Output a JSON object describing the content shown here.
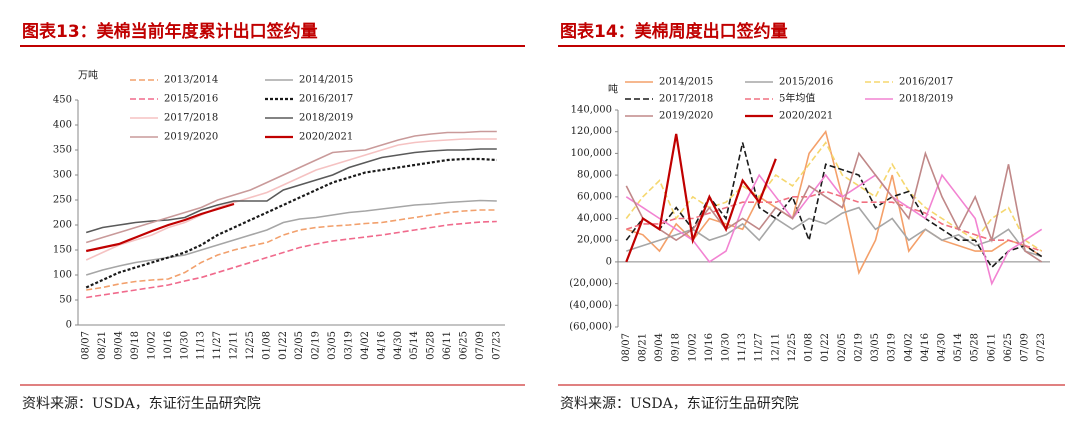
{
  "chart_data": [
    {
      "type": "line",
      "title": "图表13：美棉当前年度累计出口签约量",
      "unit_label": "万吨",
      "source": "资料来源：USDA，东证衍生品研究院",
      "categories": [
        "08/07",
        "08/21",
        "09/04",
        "09/18",
        "10/02",
        "10/16",
        "10/30",
        "11/13",
        "11/27",
        "12/11",
        "12/25",
        "01/08",
        "01/22",
        "02/05",
        "02/19",
        "03/05",
        "03/19",
        "04/02",
        "04/16",
        "04/30",
        "05/14",
        "05/28",
        "06/11",
        "06/25",
        "07/09",
        "07/23"
      ],
      "ylim": [
        0,
        450
      ],
      "yticks": [
        0,
        50,
        100,
        150,
        200,
        250,
        300,
        350,
        400,
        450
      ],
      "series": [
        {
          "name": "2013/2014",
          "color": "#f2a06c",
          "dash": "dashed",
          "values": [
            70,
            75,
            82,
            87,
            90,
            92,
            105,
            125,
            140,
            150,
            158,
            165,
            180,
            190,
            195,
            198,
            200,
            203,
            205,
            210,
            215,
            220,
            225,
            228,
            230,
            230
          ]
        },
        {
          "name": "2014/2015",
          "color": "#a6a6a6",
          "dash": "solid",
          "values": [
            100,
            110,
            118,
            125,
            130,
            135,
            140,
            150,
            160,
            170,
            180,
            190,
            205,
            212,
            215,
            220,
            225,
            228,
            232,
            236,
            240,
            242,
            245,
            247,
            249,
            248
          ]
        },
        {
          "name": "2015/2016",
          "color": "#f06a8c",
          "dash": "dashed",
          "values": [
            55,
            60,
            65,
            70,
            75,
            80,
            88,
            95,
            105,
            115,
            125,
            135,
            145,
            155,
            162,
            168,
            172,
            176,
            180,
            185,
            190,
            195,
            200,
            203,
            206,
            207
          ]
        },
        {
          "name": "2016/2017",
          "color": "#1a1a1a",
          "dash": "dotted",
          "values": [
            75,
            90,
            105,
            115,
            125,
            135,
            145,
            160,
            180,
            195,
            210,
            225,
            240,
            255,
            270,
            285,
            295,
            305,
            310,
            315,
            320,
            325,
            330,
            332,
            332,
            330
          ]
        },
        {
          "name": "2017/2018",
          "color": "#f5c2c2",
          "dash": "solid",
          "values": [
            130,
            145,
            160,
            170,
            180,
            195,
            205,
            220,
            235,
            245,
            255,
            265,
            280,
            295,
            310,
            320,
            330,
            340,
            350,
            360,
            365,
            368,
            370,
            372,
            372,
            372
          ]
        },
        {
          "name": "2018/2019",
          "color": "#5a5a5a",
          "dash": "solid",
          "values": [
            185,
            195,
            200,
            205,
            208,
            210,
            215,
            230,
            240,
            248,
            248,
            248,
            270,
            280,
            290,
            300,
            315,
            325,
            335,
            340,
            345,
            348,
            350,
            350,
            352,
            352
          ]
        },
        {
          "name": "2019/2020",
          "color": "#c99a9a",
          "dash": "solid",
          "values": [
            165,
            175,
            185,
            195,
            205,
            215,
            225,
            235,
            250,
            260,
            270,
            285,
            300,
            315,
            330,
            345,
            348,
            350,
            360,
            370,
            378,
            382,
            385,
            385,
            387,
            387
          ]
        },
        {
          "name": "2020/2021",
          "color": "#c00000",
          "dash": "solid",
          "values": [
            148,
            155,
            162,
            175,
            188,
            200,
            210,
            222,
            232,
            242,
            null,
            null,
            null,
            null,
            null,
            null,
            null,
            null,
            null,
            null,
            null,
            null,
            null,
            null,
            null,
            null
          ]
        }
      ]
    },
    {
      "type": "line",
      "title": "图表14：美棉周度出口签约量",
      "unit_label": "吨",
      "source": "资料来源：USDA，东证衍生品研究院",
      "categories": [
        "08/07",
        "08/21",
        "09/04",
        "09/18",
        "10/02",
        "10/16",
        "10/30",
        "11/13",
        "11/27",
        "12/11",
        "12/25",
        "01/08",
        "01/22",
        "02/05",
        "02/19",
        "03/05",
        "03/19",
        "04/02",
        "04/16",
        "04/30",
        "05/14",
        "05/28",
        "06/11",
        "06/25",
        "07/09",
        "07/23"
      ],
      "ylim": [
        -60000,
        140000
      ],
      "yticks": [
        {
          "value": -60000,
          "label": "(60,000)"
        },
        {
          "value": -40000,
          "label": "(40,000)"
        },
        {
          "value": -20000,
          "label": "(20,000)"
        },
        0,
        {
          "value": 20000,
          "label": "20,000"
        },
        {
          "value": 40000,
          "label": "40,000"
        },
        {
          "value": 60000,
          "label": "60,000"
        },
        {
          "value": 80000,
          "label": "80,000"
        },
        {
          "value": 100000,
          "label": "100,000"
        },
        {
          "value": 120000,
          "label": "120,000"
        },
        {
          "value": 140000,
          "label": "140,000"
        }
      ],
      "series": [
        {
          "name": "2014/2015",
          "color": "#f4a06a",
          "dash": "solid",
          "values": [
            30000,
            25000,
            10000,
            35000,
            20000,
            40000,
            35000,
            30000,
            60000,
            50000,
            40000,
            100000,
            120000,
            60000,
            -10000,
            20000,
            80000,
            10000,
            30000,
            20000,
            15000,
            10000,
            10000,
            20000,
            15000,
            5000
          ]
        },
        {
          "name": "2015/2016",
          "color": "#a6a6a6",
          "dash": "solid",
          "values": [
            10000,
            15000,
            20000,
            25000,
            30000,
            20000,
            25000,
            35000,
            20000,
            40000,
            30000,
            40000,
            35000,
            45000,
            50000,
            30000,
            40000,
            20000,
            30000,
            20000,
            25000,
            15000,
            20000,
            30000,
            10000,
            5000
          ]
        },
        {
          "name": "2016/2017",
          "color": "#f5d76e",
          "dash": "dashed",
          "values": [
            40000,
            60000,
            75000,
            40000,
            60000,
            50000,
            55000,
            70000,
            60000,
            80000,
            70000,
            90000,
            110000,
            80000,
            70000,
            60000,
            90000,
            65000,
            50000,
            40000,
            30000,
            20000,
            40000,
            50000,
            20000,
            10000
          ]
        },
        {
          "name": "2017/2018",
          "color": "#1a1a1a",
          "dash": "dashed",
          "values": [
            20000,
            40000,
            30000,
            50000,
            30000,
            60000,
            40000,
            110000,
            50000,
            40000,
            60000,
            20000,
            90000,
            85000,
            80000,
            50000,
            60000,
            65000,
            40000,
            30000,
            20000,
            20000,
            -5000,
            10000,
            15000,
            5000
          ]
        },
        {
          "name": "5年均值",
          "color": "#f07080",
          "dash": "dashed",
          "values": [
            30000,
            35000,
            35000,
            40000,
            40000,
            45000,
            50000,
            55000,
            55000,
            55000,
            60000,
            60000,
            65000,
            60000,
            55000,
            55000,
            55000,
            50000,
            45000,
            35000,
            30000,
            25000,
            20000,
            20000,
            15000,
            10000
          ]
        },
        {
          "name": "2018/2019",
          "color": "#f283d2",
          "dash": "solid",
          "values": [
            60000,
            50000,
            40000,
            30000,
            20000,
            0,
            10000,
            50000,
            80000,
            60000,
            40000,
            60000,
            80000,
            60000,
            70000,
            80000,
            60000,
            50000,
            40000,
            80000,
            60000,
            40000,
            -20000,
            10000,
            20000,
            30000
          ]
        },
        {
          "name": "2019/2020",
          "color": "#c08888",
          "dash": "solid",
          "values": [
            70000,
            40000,
            30000,
            20000,
            30000,
            50000,
            30000,
            40000,
            30000,
            50000,
            40000,
            70000,
            60000,
            50000,
            100000,
            80000,
            60000,
            40000,
            100000,
            60000,
            30000,
            60000,
            20000,
            90000,
            10000,
            0
          ]
        },
        {
          "name": "2020/2021",
          "color": "#c00000",
          "dash": "solid",
          "values": [
            0,
            40000,
            30000,
            118000,
            20000,
            60000,
            30000,
            75000,
            55000,
            95000,
            null,
            null,
            null,
            null,
            null,
            null,
            null,
            null,
            null,
            null,
            null,
            null,
            null,
            null,
            null,
            null
          ]
        }
      ]
    }
  ]
}
